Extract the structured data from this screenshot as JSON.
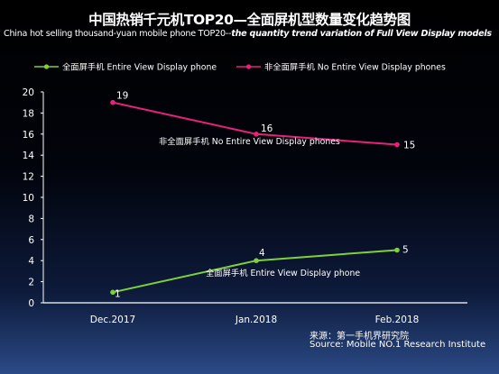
{
  "header": {
    "title": "中国热销千元机TOP20—全面屏机型数量变化趋势图",
    "subtitle_part1": "China hot selling thousand-yuan mobile phone TOP20--",
    "subtitle_part2": "the quantity trend variation of Full View Display models"
  },
  "source": {
    "line1": "来源：第一手机界研究院",
    "line2": "Source: Mobile NO.1 Research Institute"
  },
  "colors": {
    "green": "#7ed13a",
    "pink": "#e8217a",
    "axis": "#ffffff"
  },
  "chart_data": {
    "type": "line",
    "title": "中国热销千元机TOP20—全面屏机型数量变化趋势图",
    "categories": [
      "Dec.2017",
      "Jan.2018",
      "Feb.2018"
    ],
    "ylim": [
      0,
      20
    ],
    "yticks": [
      0,
      2,
      4,
      6,
      8,
      10,
      12,
      14,
      16,
      18,
      20
    ],
    "grid": false,
    "legend": "top",
    "series": [
      {
        "name": "全面屏手机  Entire View Display phone",
        "values": [
          1,
          4,
          5
        ],
        "color": "#7ed13a",
        "inline_label": "全面屏手机  Entire View Display phone"
      },
      {
        "name": "非全面屏手机  No Entire View Display phones",
        "values": [
          19,
          16,
          15
        ],
        "color": "#e8217a",
        "inline_label": "非全面屏手机  No Entire View Display phones"
      }
    ]
  }
}
